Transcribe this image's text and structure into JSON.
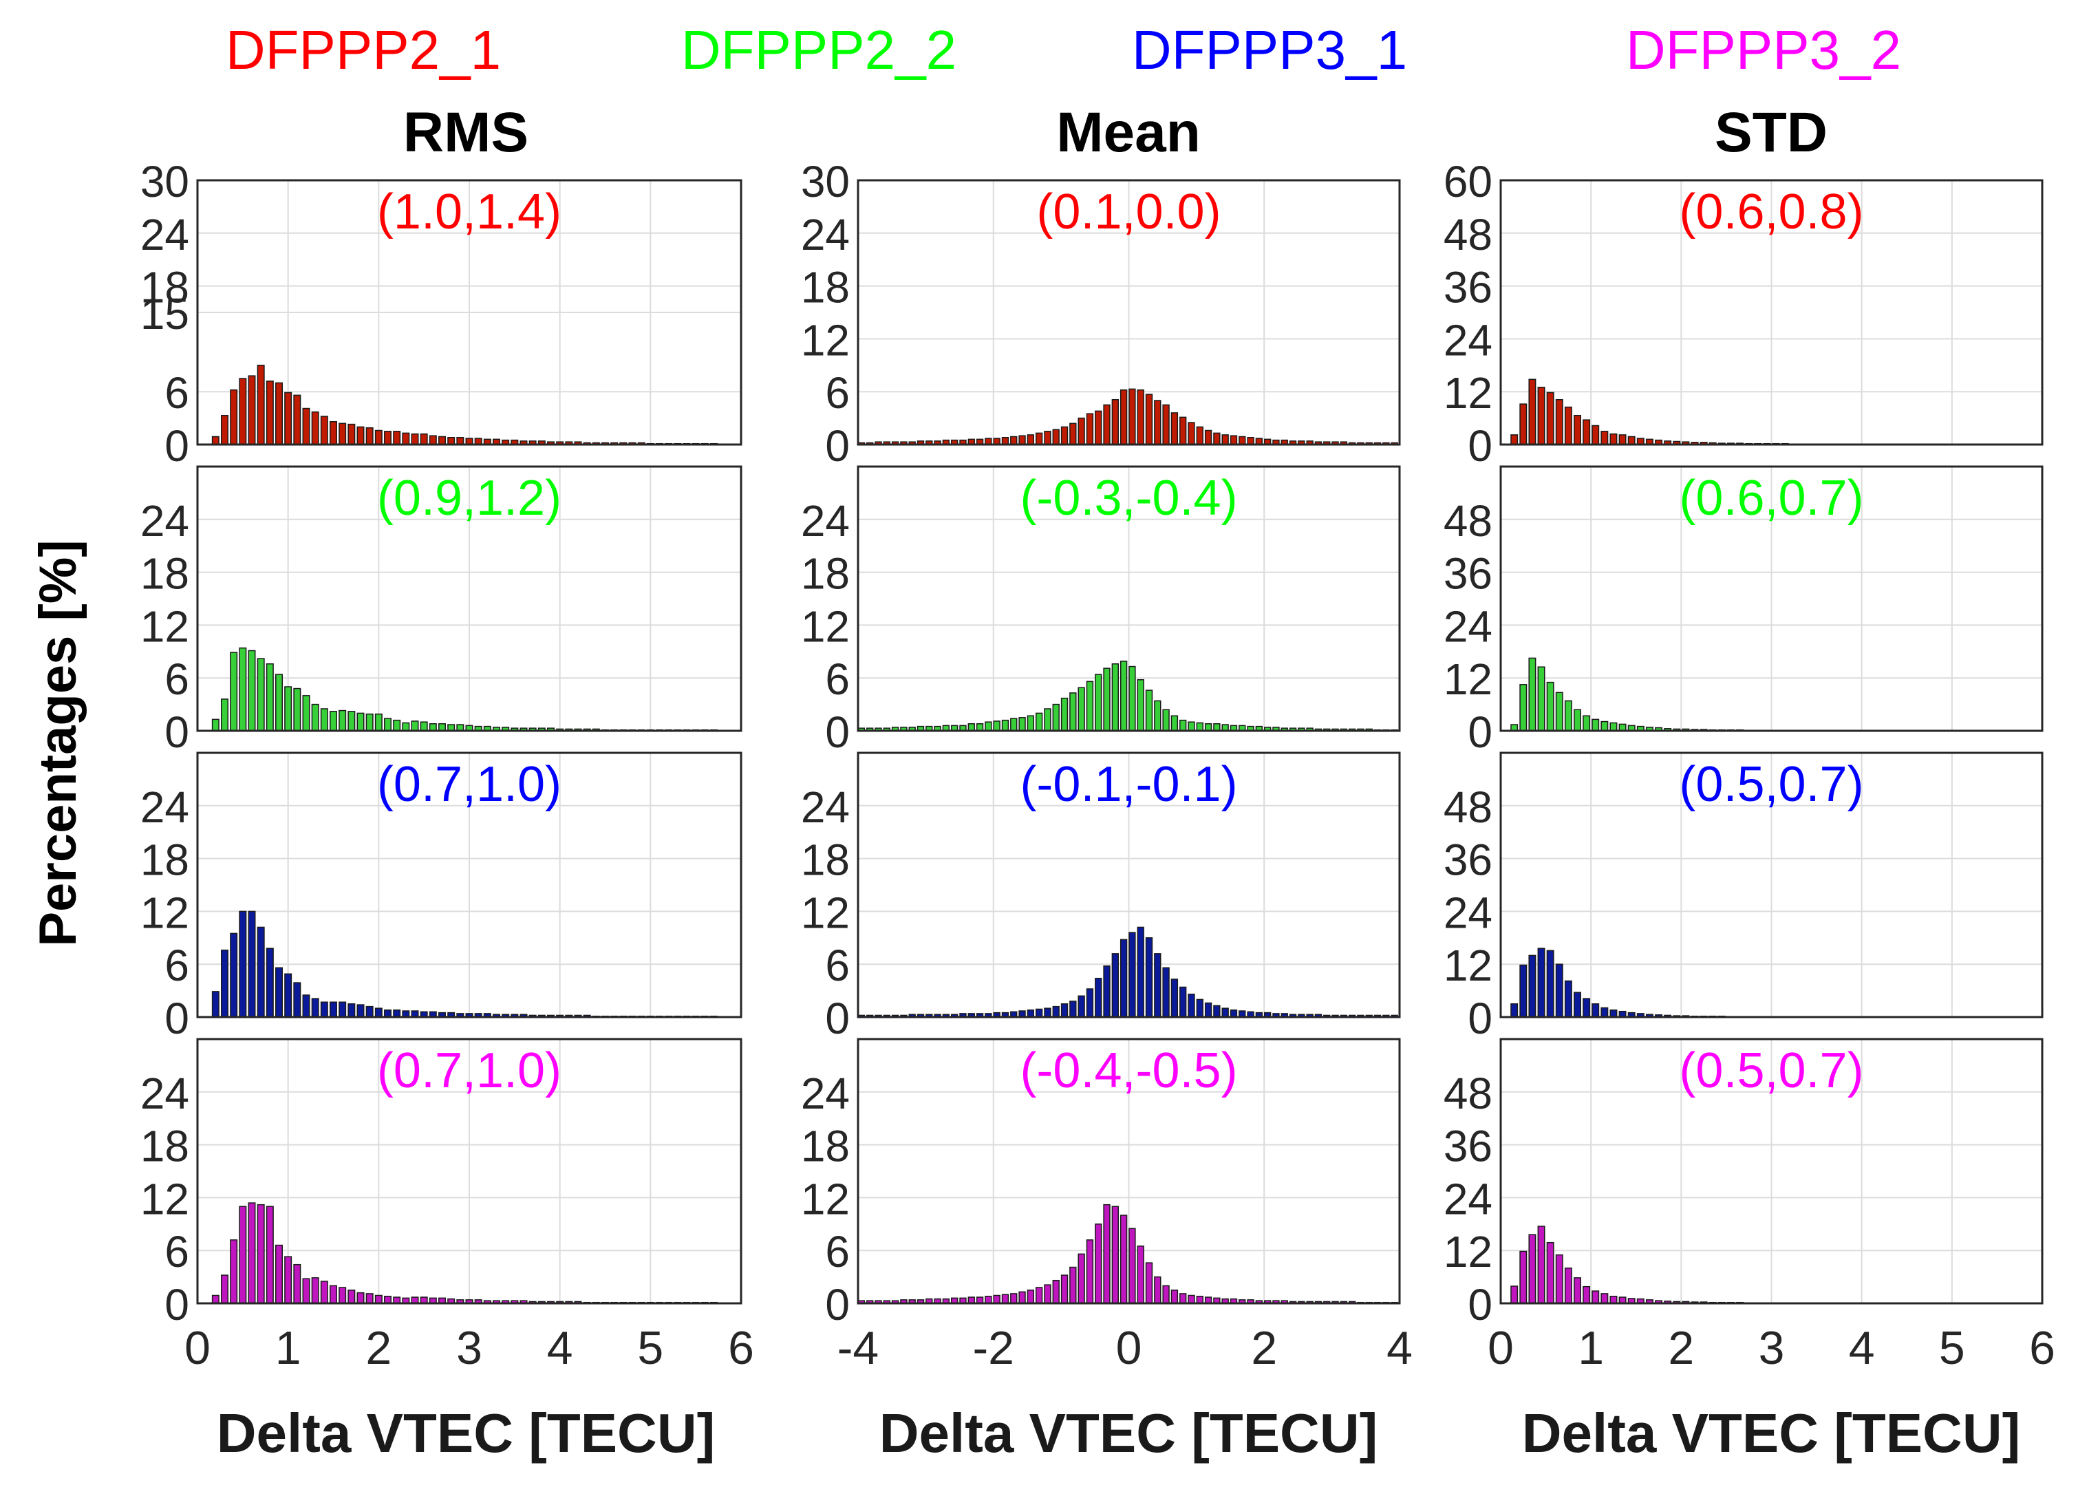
{
  "legend": [
    {
      "label": "DFPPP2_1",
      "color": "#ff0000"
    },
    {
      "label": "DFPPP2_2",
      "color": "#00ff00"
    },
    {
      "label": "DFPPP3_1",
      "color": "#0000ff"
    },
    {
      "label": "DFPPP3_2",
      "color": "#ff00ff"
    }
  ],
  "column_titles": [
    "RMS",
    "Mean",
    "STD"
  ],
  "ylabel": "Percentages [%]",
  "xlabel": "Delta VTEC [TECU]",
  "series_bar_colors": [
    "#c01a00",
    "#38d038",
    "#0a1a9a",
    "#c016c0"
  ],
  "chart_data": [
    {
      "type": "bar",
      "title": "RMS",
      "xlim": [
        0,
        6
      ],
      "xticks": [
        "0",
        "1",
        "2",
        "3",
        "4",
        "5",
        "6"
      ],
      "rows": [
        {
          "series": "DFPPP2_1",
          "annotation": "(1.0,1.4)",
          "ylim": [
            0,
            30
          ],
          "yticks": [
            0,
            6,
            15,
            18,
            24,
            30
          ],
          "yticklabels": [
            "0",
            "6",
            "15",
            "18",
            "24",
            "30"
          ],
          "bin_start": 0.2,
          "bin_width": 0.1,
          "values": [
            0.9,
            3.3,
            6.2,
            7.5,
            7.8,
            9.0,
            7.2,
            7.0,
            5.9,
            5.6,
            4.1,
            3.7,
            3.2,
            2.6,
            2.4,
            2.3,
            2.0,
            1.9,
            1.6,
            1.5,
            1.5,
            1.3,
            1.2,
            1.2,
            1.0,
            0.9,
            0.8,
            0.8,
            0.7,
            0.7,
            0.6,
            0.6,
            0.5,
            0.5,
            0.4,
            0.4,
            0.4,
            0.3,
            0.3,
            0.3,
            0.3,
            0.2,
            0.2,
            0.2,
            0.2,
            0.2,
            0.2,
            0.2,
            0.1,
            0.1,
            0.1,
            0.1,
            0.1,
            0.1,
            0.1,
            0.1
          ]
        },
        {
          "series": "DFPPP2_2",
          "annotation": "(0.9,1.2)",
          "ylim": [
            0,
            30
          ],
          "yticks": [
            0,
            6,
            12,
            18,
            24
          ],
          "yticklabels": [
            "0",
            "6",
            "12",
            "18",
            "24"
          ],
          "bin_start": 0.2,
          "bin_width": 0.1,
          "values": [
            1.3,
            3.6,
            8.9,
            9.4,
            9.1,
            8.2,
            7.6,
            6.4,
            5.0,
            4.8,
            4.0,
            3.0,
            2.5,
            2.2,
            2.3,
            2.2,
            2.0,
            1.9,
            1.9,
            1.4,
            1.2,
            0.9,
            1.1,
            1.0,
            0.8,
            0.8,
            0.7,
            0.7,
            0.6,
            0.5,
            0.5,
            0.4,
            0.4,
            0.3,
            0.3,
            0.3,
            0.3,
            0.3,
            0.2,
            0.2,
            0.2,
            0.2,
            0.2,
            0.1,
            0.1,
            0.1,
            0.1,
            0.1,
            0.1,
            0.1,
            0.1,
            0.1,
            0.1,
            0.1,
            0.1,
            0.1
          ]
        },
        {
          "series": "DFPPP3_1",
          "annotation": "(0.7,1.0)",
          "ylim": [
            0,
            30
          ],
          "yticks": [
            0,
            6,
            12,
            18,
            24
          ],
          "yticklabels": [
            "0",
            "6",
            "12",
            "18",
            "24"
          ],
          "bin_start": 0.2,
          "bin_width": 0.1,
          "values": [
            2.9,
            7.6,
            9.5,
            12.0,
            12.0,
            10.2,
            7.8,
            5.6,
            4.9,
            3.9,
            2.5,
            2.1,
            1.7,
            1.7,
            1.7,
            1.5,
            1.4,
            1.2,
            1.0,
            0.8,
            0.8,
            0.7,
            0.7,
            0.6,
            0.6,
            0.5,
            0.5,
            0.4,
            0.4,
            0.4,
            0.4,
            0.3,
            0.3,
            0.3,
            0.3,
            0.2,
            0.2,
            0.2,
            0.2,
            0.2,
            0.2,
            0.2,
            0.1,
            0.1,
            0.1,
            0.1,
            0.1,
            0.1,
            0.1,
            0.1,
            0.1,
            0.1,
            0.1,
            0.1,
            0.1,
            0.1
          ]
        },
        {
          "series": "DFPPP3_2",
          "annotation": "(0.7,1.0)",
          "ylim": [
            0,
            30
          ],
          "yticks": [
            0,
            6,
            12,
            18,
            24
          ],
          "yticklabels": [
            "0",
            "6",
            "12",
            "18",
            "24"
          ],
          "bin_start": 0.2,
          "bin_width": 0.1,
          "values": [
            0.9,
            3.2,
            7.2,
            11.0,
            11.4,
            11.2,
            11.0,
            6.6,
            5.3,
            4.4,
            2.8,
            2.9,
            2.5,
            2.0,
            1.8,
            1.5,
            1.2,
            1.1,
            0.9,
            0.8,
            0.7,
            0.6,
            0.7,
            0.7,
            0.6,
            0.6,
            0.5,
            0.4,
            0.4,
            0.4,
            0.3,
            0.3,
            0.3,
            0.3,
            0.3,
            0.2,
            0.2,
            0.2,
            0.2,
            0.2,
            0.2,
            0.1,
            0.1,
            0.1,
            0.1,
            0.1,
            0.1,
            0.1,
            0.1,
            0.1,
            0.1,
            0.1,
            0.1,
            0.1,
            0.1,
            0.1
          ]
        }
      ]
    },
    {
      "type": "bar",
      "title": "Mean",
      "xlim": [
        -4,
        4
      ],
      "xticks": [
        "-4",
        "-2",
        "0",
        "2",
        "4"
      ],
      "rows": [
        {
          "series": "DFPPP2_1",
          "annotation": "(0.1,0.0)",
          "ylim": [
            0,
            30
          ],
          "yticks": [
            0,
            6,
            12,
            18,
            24,
            30
          ],
          "yticklabels": [
            "0",
            "6",
            "12",
            "18",
            "24",
            "30"
          ],
          "bin_start": -3.95,
          "bin_width": 0.125,
          "values": [
            0.2,
            0.2,
            0.3,
            0.3,
            0.3,
            0.3,
            0.3,
            0.4,
            0.4,
            0.4,
            0.5,
            0.5,
            0.5,
            0.6,
            0.6,
            0.7,
            0.7,
            0.8,
            0.9,
            1.0,
            1.1,
            1.3,
            1.5,
            1.7,
            2.0,
            2.4,
            3.0,
            3.5,
            3.8,
            4.5,
            5.1,
            6.2,
            6.3,
            6.2,
            5.7,
            5.0,
            4.5,
            3.6,
            3.1,
            2.5,
            2.0,
            1.6,
            1.3,
            1.1,
            1.0,
            0.9,
            0.8,
            0.7,
            0.6,
            0.5,
            0.5,
            0.4,
            0.4,
            0.4,
            0.3,
            0.3,
            0.3,
            0.3,
            0.2,
            0.2,
            0.2,
            0.2,
            0.2,
            0.2
          ]
        },
        {
          "series": "DFPPP2_2",
          "annotation": "(-0.3,-0.4)",
          "ylim": [
            0,
            30
          ],
          "yticks": [
            0,
            6,
            12,
            18,
            24
          ],
          "yticklabels": [
            "0",
            "6",
            "12",
            "18",
            "24"
          ],
          "bin_start": -3.95,
          "bin_width": 0.125,
          "values": [
            0.3,
            0.3,
            0.3,
            0.3,
            0.4,
            0.4,
            0.4,
            0.5,
            0.5,
            0.5,
            0.6,
            0.6,
            0.6,
            0.8,
            0.8,
            1.0,
            1.1,
            1.2,
            1.4,
            1.5,
            1.7,
            2.0,
            2.5,
            3.0,
            3.7,
            4.3,
            4.9,
            5.6,
            6.4,
            7.1,
            7.6,
            7.9,
            7.3,
            5.8,
            4.6,
            3.4,
            2.4,
            1.7,
            1.2,
            1.0,
            0.9,
            0.8,
            0.8,
            0.7,
            0.6,
            0.6,
            0.5,
            0.5,
            0.4,
            0.4,
            0.3,
            0.3,
            0.3,
            0.3,
            0.2,
            0.2,
            0.2,
            0.2,
            0.2,
            0.2,
            0.2,
            0.1,
            0.1,
            0.1
          ]
        },
        {
          "series": "DFPPP3_1",
          "annotation": "(-0.1,-0.1)",
          "ylim": [
            0,
            30
          ],
          "yticks": [
            0,
            6,
            12,
            18,
            24
          ],
          "yticklabels": [
            "0",
            "6",
            "12",
            "18",
            "24"
          ],
          "bin_start": -3.95,
          "bin_width": 0.125,
          "values": [
            0.2,
            0.2,
            0.2,
            0.2,
            0.2,
            0.2,
            0.3,
            0.3,
            0.3,
            0.3,
            0.3,
            0.3,
            0.4,
            0.4,
            0.4,
            0.4,
            0.5,
            0.5,
            0.6,
            0.7,
            0.8,
            0.9,
            1.0,
            1.2,
            1.5,
            1.8,
            2.4,
            3.2,
            4.4,
            5.8,
            7.2,
            8.8,
            9.6,
            10.2,
            9.0,
            7.2,
            5.6,
            4.3,
            3.4,
            2.6,
            2.0,
            1.6,
            1.3,
            1.0,
            0.8,
            0.7,
            0.6,
            0.5,
            0.5,
            0.4,
            0.4,
            0.3,
            0.3,
            0.3,
            0.3,
            0.2,
            0.2,
            0.2,
            0.2,
            0.2,
            0.2,
            0.2,
            0.2,
            0.2
          ]
        },
        {
          "series": "DFPPP3_2",
          "annotation": "(-0.4,-0.5)",
          "ylim": [
            0,
            30
          ],
          "yticks": [
            0,
            6,
            12,
            18,
            24
          ],
          "yticklabels": [
            "0",
            "6",
            "12",
            "18",
            "24"
          ],
          "bin_start": -3.95,
          "bin_width": 0.125,
          "values": [
            0.3,
            0.3,
            0.3,
            0.3,
            0.3,
            0.4,
            0.4,
            0.4,
            0.5,
            0.5,
            0.5,
            0.6,
            0.6,
            0.7,
            0.7,
            0.8,
            0.9,
            1.0,
            1.1,
            1.3,
            1.5,
            1.8,
            2.1,
            2.6,
            3.2,
            4.1,
            5.6,
            7.2,
            9.0,
            11.2,
            11.0,
            10.0,
            8.5,
            6.5,
            4.6,
            3.0,
            2.0,
            1.5,
            1.1,
            0.9,
            0.8,
            0.7,
            0.6,
            0.5,
            0.5,
            0.4,
            0.4,
            0.3,
            0.3,
            0.3,
            0.3,
            0.2,
            0.2,
            0.2,
            0.2,
            0.2,
            0.2,
            0.2,
            0.2,
            0.1,
            0.1,
            0.1,
            0.1,
            0.1
          ]
        }
      ]
    },
    {
      "type": "bar",
      "title": "STD",
      "xlim": [
        0,
        6
      ],
      "xticks": [
        "0",
        "1",
        "2",
        "3",
        "4",
        "5",
        "6"
      ],
      "rows": [
        {
          "series": "DFPPP2_1",
          "annotation": "(0.6,0.8)",
          "ylim": [
            0,
            60
          ],
          "yticks": [
            0,
            12,
            24,
            36,
            48,
            60
          ],
          "yticklabels": [
            "0",
            "12",
            "24",
            "36",
            "48",
            "60"
          ],
          "bin_start": 0.15,
          "bin_width": 0.1,
          "values": [
            2.2,
            9.2,
            14.8,
            13.0,
            11.8,
            10.2,
            8.5,
            6.6,
            5.6,
            4.3,
            3.0,
            2.4,
            2.2,
            1.8,
            1.4,
            1.2,
            1.0,
            0.8,
            0.7,
            0.6,
            0.5,
            0.5,
            0.4,
            0.3,
            0.3,
            0.3,
            0.2,
            0.2,
            0.2,
            0.2,
            0.2,
            0.1,
            0.1,
            0.1,
            0.1,
            0.1,
            0.1,
            0.1,
            0.1,
            0.1
          ]
        },
        {
          "series": "DFPPP2_2",
          "annotation": "(0.6,0.7)",
          "ylim": [
            0,
            60
          ],
          "yticks": [
            0,
            12,
            24,
            36,
            48
          ],
          "yticklabels": [
            "0",
            "12",
            "24",
            "36",
            "48"
          ],
          "bin_start": 0.15,
          "bin_width": 0.1,
          "values": [
            1.4,
            10.5,
            16.5,
            14.5,
            11.0,
            8.7,
            6.8,
            4.8,
            3.4,
            2.6,
            2.1,
            1.8,
            1.5,
            1.2,
            1.0,
            0.8,
            0.7,
            0.5,
            0.4,
            0.4,
            0.3,
            0.3,
            0.2,
            0.2,
            0.2,
            0.2,
            0.1,
            0.1,
            0.1,
            0.1,
            0.1,
            0.1,
            0.1,
            0.1,
            0.1,
            0.1,
            0.1,
            0.1,
            0.1,
            0.1
          ]
        },
        {
          "series": "DFPPP3_1",
          "annotation": "(0.5,0.7)",
          "ylim": [
            0,
            60
          ],
          "yticks": [
            0,
            12,
            24,
            36,
            48
          ],
          "yticklabels": [
            "0",
            "12",
            "24",
            "36",
            "48"
          ],
          "bin_start": 0.15,
          "bin_width": 0.1,
          "values": [
            3.0,
            11.8,
            14.0,
            15.6,
            15.1,
            12.0,
            8.2,
            5.6,
            4.2,
            3.0,
            2.1,
            1.6,
            1.3,
            1.0,
            0.8,
            0.6,
            0.5,
            0.4,
            0.3,
            0.3,
            0.2,
            0.2,
            0.2,
            0.2,
            0.1,
            0.1,
            0.1,
            0.1,
            0.1,
            0.1,
            0.1,
            0.1,
            0.1,
            0.1,
            0.1,
            0.1,
            0.1,
            0.1,
            0.1,
            0.1
          ]
        },
        {
          "series": "DFPPP3_2",
          "annotation": "(0.5,0.7)",
          "ylim": [
            0,
            60
          ],
          "yticks": [
            0,
            12,
            24,
            36,
            48
          ],
          "yticklabels": [
            "0",
            "12",
            "24",
            "36",
            "48"
          ],
          "bin_start": 0.15,
          "bin_width": 0.1,
          "values": [
            3.9,
            11.8,
            15.6,
            17.5,
            13.8,
            11.0,
            8.0,
            5.8,
            3.8,
            2.8,
            2.2,
            1.6,
            1.4,
            1.1,
            1.0,
            0.8,
            0.6,
            0.5,
            0.4,
            0.4,
            0.3,
            0.3,
            0.2,
            0.2,
            0.2,
            0.2,
            0.1,
            0.1,
            0.1,
            0.1,
            0.1,
            0.1,
            0.1,
            0.1,
            0.1,
            0.1,
            0.1,
            0.1,
            0.1,
            0.1
          ]
        }
      ]
    }
  ]
}
